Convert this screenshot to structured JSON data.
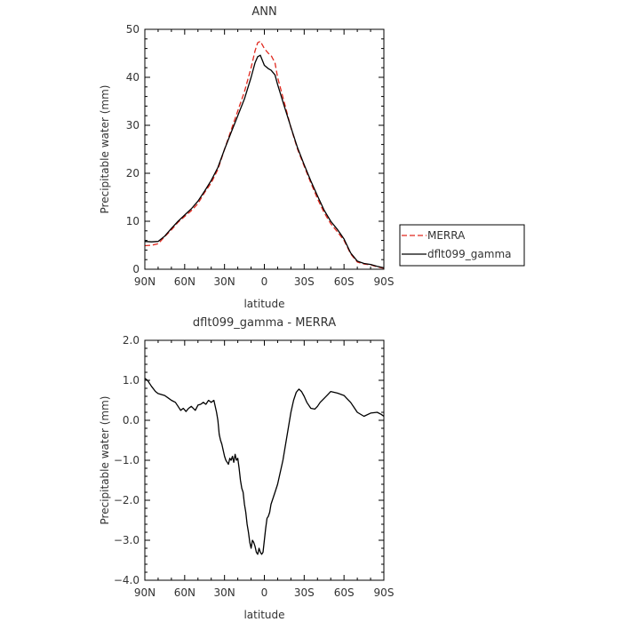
{
  "chart_data": [
    {
      "type": "line",
      "title": "ANN",
      "xlabel": "latitude",
      "ylabel": "Precipitable water (mm)",
      "xlim": [
        -90,
        90
      ],
      "ylim": [
        0,
        50
      ],
      "x_ticks": [
        -90,
        -60,
        -30,
        0,
        30,
        60,
        90
      ],
      "x_tick_labels": [
        "90N",
        "60N",
        "30N",
        "0",
        "30S",
        "60S",
        "90S"
      ],
      "y_ticks": [
        0,
        10,
        20,
        30,
        40,
        50
      ],
      "y_tick_labels": [
        "0",
        "10",
        "20",
        "30",
        "40",
        "50"
      ],
      "legend_position": "right",
      "series": [
        {
          "name": "MERRA",
          "color": "#e0281e",
          "dash": "dashed",
          "x": [
            -90,
            -85,
            -80,
            -75,
            -70,
            -65,
            -60,
            -55,
            -50,
            -45,
            -40,
            -35,
            -30,
            -25,
            -20,
            -15,
            -10,
            -7,
            -5,
            -3,
            0,
            3,
            5,
            8,
            10,
            15,
            20,
            25,
            30,
            35,
            40,
            45,
            50,
            55,
            60,
            65,
            70,
            75,
            80,
            85,
            90
          ],
          "y": [
            4.9,
            5.0,
            5.3,
            6.8,
            8.2,
            9.8,
            11.0,
            12.2,
            13.7,
            16.0,
            18.0,
            20.8,
            25.0,
            29.0,
            33.0,
            37.0,
            42.0,
            45.5,
            47.2,
            47.5,
            46.0,
            45.0,
            44.6,
            43.0,
            40.0,
            34.8,
            29.5,
            25.0,
            21.5,
            18.0,
            14.7,
            11.8,
            9.5,
            7.8,
            6.0,
            3.2,
            1.5,
            1.1,
            0.9,
            0.5,
            0.2
          ]
        },
        {
          "name": "dflt099_gamma",
          "color": "#000000",
          "dash": "solid",
          "x": [
            -90,
            -85,
            -80,
            -75,
            -70,
            -65,
            -60,
            -55,
            -50,
            -45,
            -40,
            -35,
            -30,
            -25,
            -20,
            -15,
            -10,
            -7,
            -5,
            -3,
            0,
            3,
            5,
            8,
            10,
            15,
            20,
            25,
            30,
            35,
            40,
            45,
            50,
            55,
            60,
            65,
            70,
            75,
            80,
            85,
            90
          ],
          "y": [
            5.8,
            5.7,
            5.8,
            6.9,
            8.5,
            10.0,
            11.3,
            12.6,
            14.2,
            16.3,
            18.5,
            21.2,
            25.0,
            28.5,
            32.0,
            35.5,
            40.0,
            43.0,
            44.3,
            44.6,
            42.5,
            41.8,
            41.5,
            40.5,
            38.5,
            34.0,
            29.6,
            25.3,
            21.8,
            18.4,
            15.3,
            12.3,
            10.0,
            8.3,
            6.3,
            3.4,
            1.7,
            1.2,
            1.0,
            0.6,
            0.3
          ]
        }
      ]
    },
    {
      "type": "line",
      "title": "dflt099_gamma - MERRA",
      "xlabel": "latitude",
      "ylabel": "Precipitable water (mm)",
      "xlim": [
        -90,
        90
      ],
      "ylim": [
        -4.0,
        2.0
      ],
      "x_ticks": [
        -90,
        -60,
        -30,
        0,
        30,
        60,
        90
      ],
      "x_tick_labels": [
        "90N",
        "60N",
        "30N",
        "0",
        "30S",
        "60S",
        "90S"
      ],
      "y_ticks": [
        -4,
        -3,
        -2,
        -1,
        0,
        1,
        2
      ],
      "y_tick_labels": [
        "−4.0",
        "−3.0",
        "−2.0",
        "−1.0",
        "0.0",
        "1.0",
        "2.0"
      ],
      "series": [
        {
          "color": "#000000",
          "dash": "solid",
          "x": [
            -90,
            -88,
            -85,
            -82,
            -80,
            -75,
            -72,
            -70,
            -67,
            -65,
            -63,
            -61,
            -59,
            -57,
            -55,
            -52,
            -50,
            -48,
            -46,
            -44,
            -42,
            -40,
            -38,
            -36,
            -35,
            -34,
            -33,
            -32,
            -31,
            -30,
            -29,
            -28,
            -27,
            -26,
            -25,
            -24,
            -23,
            -22,
            -21,
            -20,
            -19,
            -18,
            -17,
            -16,
            -15,
            -14,
            -13,
            -12,
            -11,
            -10,
            -9,
            -8,
            -7,
            -6,
            -5,
            -4,
            -3,
            -2,
            -1,
            0,
            1,
            2,
            3,
            4,
            5,
            6,
            7,
            8,
            10,
            12,
            14,
            16,
            18,
            20,
            22,
            24,
            26,
            28,
            30,
            32,
            35,
            38,
            40,
            42,
            45,
            48,
            50,
            55,
            60,
            62,
            65,
            68,
            70,
            75,
            80,
            85,
            88,
            90
          ],
          "y": [
            1.05,
            1.0,
            0.85,
            0.72,
            0.67,
            0.62,
            0.55,
            0.5,
            0.45,
            0.35,
            0.25,
            0.3,
            0.22,
            0.3,
            0.35,
            0.25,
            0.38,
            0.4,
            0.45,
            0.4,
            0.5,
            0.45,
            0.5,
            0.2,
            0.0,
            -0.35,
            -0.5,
            -0.6,
            -0.75,
            -0.9,
            -1.0,
            -1.05,
            -1.1,
            -0.95,
            -1.0,
            -0.9,
            -1.05,
            -0.85,
            -1.0,
            -0.95,
            -1.2,
            -1.5,
            -1.7,
            -1.8,
            -2.1,
            -2.3,
            -2.6,
            -2.8,
            -3.05,
            -3.2,
            -3.0,
            -3.05,
            -3.15,
            -3.3,
            -3.35,
            -3.2,
            -3.3,
            -3.35,
            -3.3,
            -3.0,
            -2.7,
            -2.45,
            -2.4,
            -2.3,
            -2.1,
            -2.0,
            -1.9,
            -1.8,
            -1.6,
            -1.3,
            -1.0,
            -0.6,
            -0.2,
            0.2,
            0.5,
            0.7,
            0.78,
            0.72,
            0.6,
            0.45,
            0.3,
            0.28,
            0.35,
            0.45,
            0.55,
            0.65,
            0.72,
            0.68,
            0.62,
            0.55,
            0.45,
            0.3,
            0.2,
            0.1,
            0.18,
            0.2,
            0.15,
            0.1
          ]
        }
      ]
    }
  ]
}
